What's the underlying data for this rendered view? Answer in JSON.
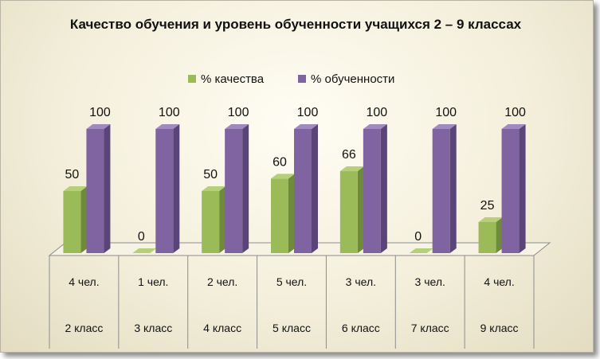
{
  "title": "Качество обучения и уровень обученности учащихся 2 – 9 классах",
  "colors": {
    "quality": "#9bbb59",
    "learned": "#8064a2"
  },
  "chart_data": {
    "type": "bar",
    "title": "Качество обучения и уровень обученности учащихся 2 – 9 классах",
    "categories": [
      "2 класс",
      "3 класс",
      "4 класс",
      "5 класс",
      "6 класс",
      "7 класс",
      "9 класс"
    ],
    "students": [
      "4 чел.",
      "1 чел.",
      "2 чел.",
      "5 чел.",
      "3 чел.",
      "3 чел.",
      "4 чел."
    ],
    "series": [
      {
        "name": "% качества",
        "values": [
          50,
          0,
          50,
          60,
          66,
          0,
          25
        ]
      },
      {
        "name": "% обученности",
        "values": [
          100,
          100,
          100,
          100,
          100,
          100,
          100
        ]
      }
    ],
    "ylim": [
      0,
      100
    ],
    "legend": "top",
    "grid": false,
    "table_below": true
  }
}
